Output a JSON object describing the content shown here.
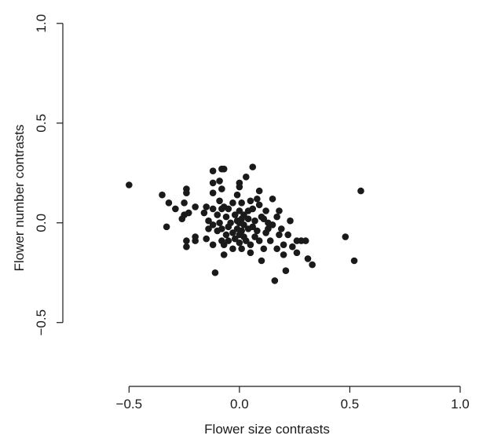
{
  "chart_data": {
    "type": "scatter",
    "title": "",
    "xlabel": "Flower size contrasts",
    "ylabel": "Flower number contrasts",
    "xlim": [
      -0.8,
      1.05
    ],
    "ylim": [
      -0.82,
      1.07
    ],
    "xticks": [
      -0.5,
      0.0,
      0.5,
      1.0
    ],
    "xtick_labels": [
      "−0.5",
      "0.0",
      "0.5",
      "1.0"
    ],
    "yticks": [
      -0.5,
      0.0,
      0.5,
      1.0
    ],
    "ytick_labels": [
      "−0.5",
      "0.0",
      "0.5",
      "1.0"
    ],
    "grid": false,
    "marker_color": "#1a1a1a",
    "points": [
      [
        -0.5,
        0.19
      ],
      [
        0.55,
        0.16
      ],
      [
        0.48,
        -0.07
      ],
      [
        0.52,
        -0.19
      ],
      [
        -0.35,
        0.14
      ],
      [
        -0.33,
        -0.02
      ],
      [
        -0.32,
        0.1
      ],
      [
        -0.29,
        0.07
      ],
      [
        -0.26,
        0.02
      ],
      [
        -0.25,
        0.1
      ],
      [
        -0.25,
        0.04
      ],
      [
        -0.24,
        0.15
      ],
      [
        -0.24,
        0.17
      ],
      [
        -0.24,
        -0.09
      ],
      [
        -0.24,
        -0.12
      ],
      [
        -0.23,
        0.05
      ],
      [
        -0.2,
        -0.07
      ],
      [
        -0.2,
        -0.09
      ],
      [
        -0.2,
        0.08
      ],
      [
        -0.16,
        0.05
      ],
      [
        -0.15,
        0.08
      ],
      [
        -0.15,
        -0.08
      ],
      [
        -0.14,
        0.01
      ],
      [
        -0.14,
        -0.03
      ],
      [
        -0.12,
        0.26
      ],
      [
        -0.12,
        0.2
      ],
      [
        -0.12,
        0.15
      ],
      [
        -0.12,
        0.07
      ],
      [
        -0.12,
        -0.01
      ],
      [
        -0.12,
        -0.11
      ],
      [
        -0.11,
        -0.25
      ],
      [
        -0.1,
        0.04
      ],
      [
        -0.1,
        -0.04
      ],
      [
        -0.09,
        0.21
      ],
      [
        -0.09,
        0.11
      ],
      [
        -0.09,
        0.0
      ],
      [
        -0.08,
        -0.09
      ],
      [
        -0.08,
        -0.03
      ],
      [
        -0.08,
        0.07
      ],
      [
        -0.08,
        0.17
      ],
      [
        -0.08,
        0.27
      ],
      [
        -0.07,
        0.27
      ],
      [
        -0.07,
        0.08
      ],
      [
        -0.07,
        -0.11
      ],
      [
        -0.07,
        -0.16
      ],
      [
        -0.06,
        0.03
      ],
      [
        -0.06,
        -0.06
      ],
      [
        -0.05,
        0.07
      ],
      [
        -0.05,
        -0.02
      ],
      [
        -0.05,
        -0.09
      ],
      [
        -0.04,
        0.0
      ],
      [
        -0.03,
        -0.13
      ],
      [
        -0.03,
        0.1
      ],
      [
        -0.03,
        -0.05
      ],
      [
        -0.02,
        0.04
      ],
      [
        -0.02,
        -0.08
      ],
      [
        -0.01,
        0.01
      ],
      [
        -0.01,
        0.14
      ],
      [
        -0.01,
        -0.03
      ],
      [
        0.0,
        0.06
      ],
      [
        0.0,
        -0.06
      ],
      [
        0.0,
        0.18
      ],
      [
        0.0,
        0.2
      ],
      [
        0.0,
        -0.1
      ],
      [
        0.0,
        0.0
      ],
      [
        0.01,
        0.02
      ],
      [
        0.01,
        -0.04
      ],
      [
        0.01,
        0.1
      ],
      [
        0.01,
        -0.13
      ],
      [
        0.02,
        0.04
      ],
      [
        0.02,
        -0.01
      ],
      [
        0.02,
        -0.07
      ],
      [
        0.03,
        0.23
      ],
      [
        0.03,
        -0.09
      ],
      [
        0.04,
        0.06
      ],
      [
        0.04,
        -0.03
      ],
      [
        0.04,
        0.02
      ],
      [
        0.05,
        0.11
      ],
      [
        0.05,
        -0.11
      ],
      [
        0.05,
        -0.15
      ],
      [
        0.06,
        0.28
      ],
      [
        0.06,
        -0.02
      ],
      [
        0.06,
        0.07
      ],
      [
        0.07,
        0.01
      ],
      [
        0.07,
        -0.07
      ],
      [
        0.08,
        0.12
      ],
      [
        0.08,
        -0.04
      ],
      [
        0.09,
        0.16
      ],
      [
        0.09,
        0.09
      ],
      [
        0.09,
        -0.09
      ],
      [
        0.1,
        0.03
      ],
      [
        0.1,
        -0.19
      ],
      [
        0.11,
        0.02
      ],
      [
        0.11,
        -0.13
      ],
      [
        0.12,
        -0.05
      ],
      [
        0.12,
        0.06
      ],
      [
        0.13,
        0.0
      ],
      [
        0.13,
        -0.03
      ],
      [
        0.14,
        -0.09
      ],
      [
        0.15,
        0.12
      ],
      [
        0.15,
        -0.01
      ],
      [
        0.16,
        -0.29
      ],
      [
        0.17,
        0.03
      ],
      [
        0.17,
        -0.13
      ],
      [
        0.18,
        -0.06
      ],
      [
        0.18,
        0.06
      ],
      [
        0.19,
        -0.03
      ],
      [
        0.2,
        -0.11
      ],
      [
        0.2,
        -0.16
      ],
      [
        0.21,
        -0.24
      ],
      [
        0.22,
        -0.06
      ],
      [
        0.23,
        0.01
      ],
      [
        0.24,
        -0.12
      ],
      [
        0.26,
        -0.09
      ],
      [
        0.26,
        -0.15
      ],
      [
        0.28,
        -0.09
      ],
      [
        0.3,
        -0.09
      ],
      [
        0.31,
        -0.18
      ],
      [
        0.33,
        -0.21
      ]
    ]
  }
}
